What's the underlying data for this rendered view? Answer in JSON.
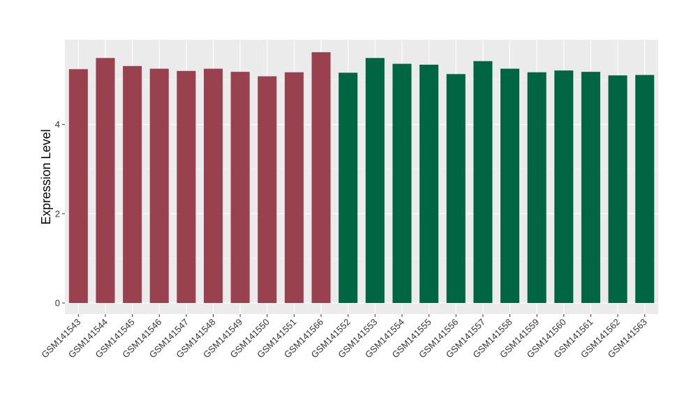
{
  "chart_data": {
    "type": "bar",
    "title": "",
    "xlabel": "",
    "ylabel": "Expression Level",
    "ylim": [
      -0.25,
      5.9
    ],
    "yticks": [
      0,
      2,
      4
    ],
    "ytick_labels": [
      "0",
      "2",
      "4"
    ],
    "grid": true,
    "legend": "none",
    "categories": [
      "GSM141543",
      "GSM141544",
      "GSM141545",
      "GSM141546",
      "GSM141547",
      "GSM141548",
      "GSM141549",
      "GSM141550",
      "GSM141551",
      "GSM141566",
      "GSM141552",
      "GSM141553",
      "GSM141554",
      "GSM141555",
      "GSM141556",
      "GSM141557",
      "GSM141558",
      "GSM141559",
      "GSM141560",
      "GSM141561",
      "GSM141562",
      "GSM141563"
    ],
    "values": [
      5.24,
      5.49,
      5.31,
      5.25,
      5.2,
      5.25,
      5.18,
      5.08,
      5.17,
      5.62,
      5.16,
      5.49,
      5.36,
      5.34,
      5.13,
      5.42,
      5.25,
      5.17,
      5.21,
      5.18,
      5.1,
      5.11
    ],
    "groups": [
      "a",
      "a",
      "a",
      "a",
      "a",
      "a",
      "a",
      "a",
      "a",
      "a",
      "b",
      "b",
      "b",
      "b",
      "b",
      "b",
      "b",
      "b",
      "b",
      "b",
      "b",
      "b"
    ],
    "group_colors": {
      "a": "#99414f",
      "b": "#006543"
    },
    "colors": {
      "panel_background": "#ebebeb",
      "grid_major": "#ffffff",
      "grid_minor": "#f5f5f5",
      "tick_mark": "#333333"
    }
  }
}
